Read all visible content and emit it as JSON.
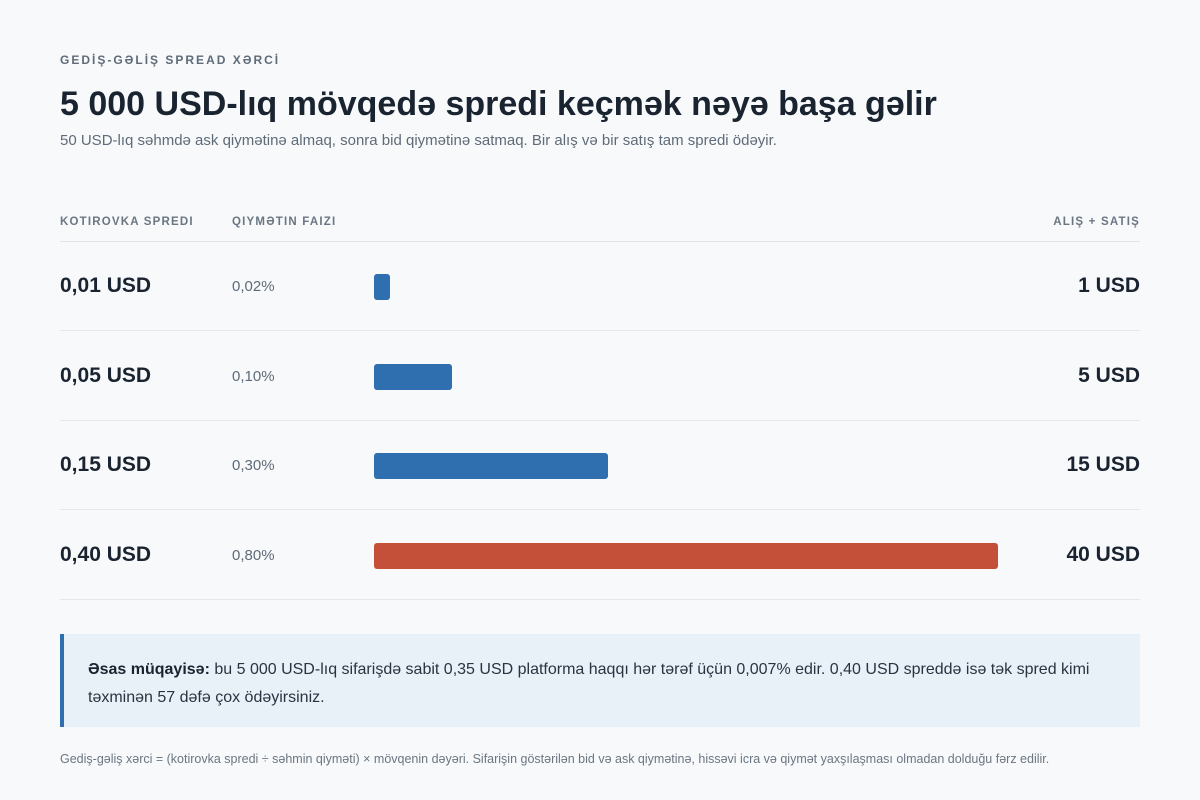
{
  "header": {
    "eyebrow": "GEDİŞ-GƏLİŞ SPREAD XƏRCİ",
    "title": "5 000 USD-lıq mövqedə spredi keçmək nəyə başa gəlir",
    "subtitle": "50 USD-lıq səhmdə ask qiymətinə almaq, sonra bid qiymətinə satmaq. Bir alış və bir satış tam spredi ödəyir."
  },
  "table": {
    "col_spread": "KOTIROVKA SPREDI",
    "col_pct": "QIYMƏTIN FAIZI",
    "col_cost": "ALIŞ + SATIŞ"
  },
  "colors": {
    "normal": "#2f6fb0",
    "highlight": "#c4503a"
  },
  "chart_data": {
    "type": "bar",
    "categories": [
      "0,01 USD",
      "0,05 USD",
      "0,15 USD",
      "0,40 USD"
    ],
    "pct_labels": [
      "0,02%",
      "0,10%",
      "0,30%",
      "0,80%"
    ],
    "cost_labels": [
      "1 USD",
      "5 USD",
      "15 USD",
      "40 USD"
    ],
    "values": [
      1,
      5,
      15,
      40
    ],
    "highlight_index": 3
  },
  "callout": {
    "bold": "Əsas müqayisə:",
    "text": " bu 5 000 USD-lıq sifarişdə sabit 0,35 USD platforma haqqı hər tərəf üçün 0,007% edir. 0,40 USD spreddə isə tək spred kimi təxminən 57 dəfə çox ödəyirsiniz."
  },
  "footnote": "Gediş-gəliş xərci = (kotirovka spredi ÷ səhmin qiyməti) × mövqenin dəyəri. Sifarişin göstərilən bid və ask qiymətinə, hissəvi icra və qiymət yaxşılaşması olmadan dolduğu fərz edilir."
}
